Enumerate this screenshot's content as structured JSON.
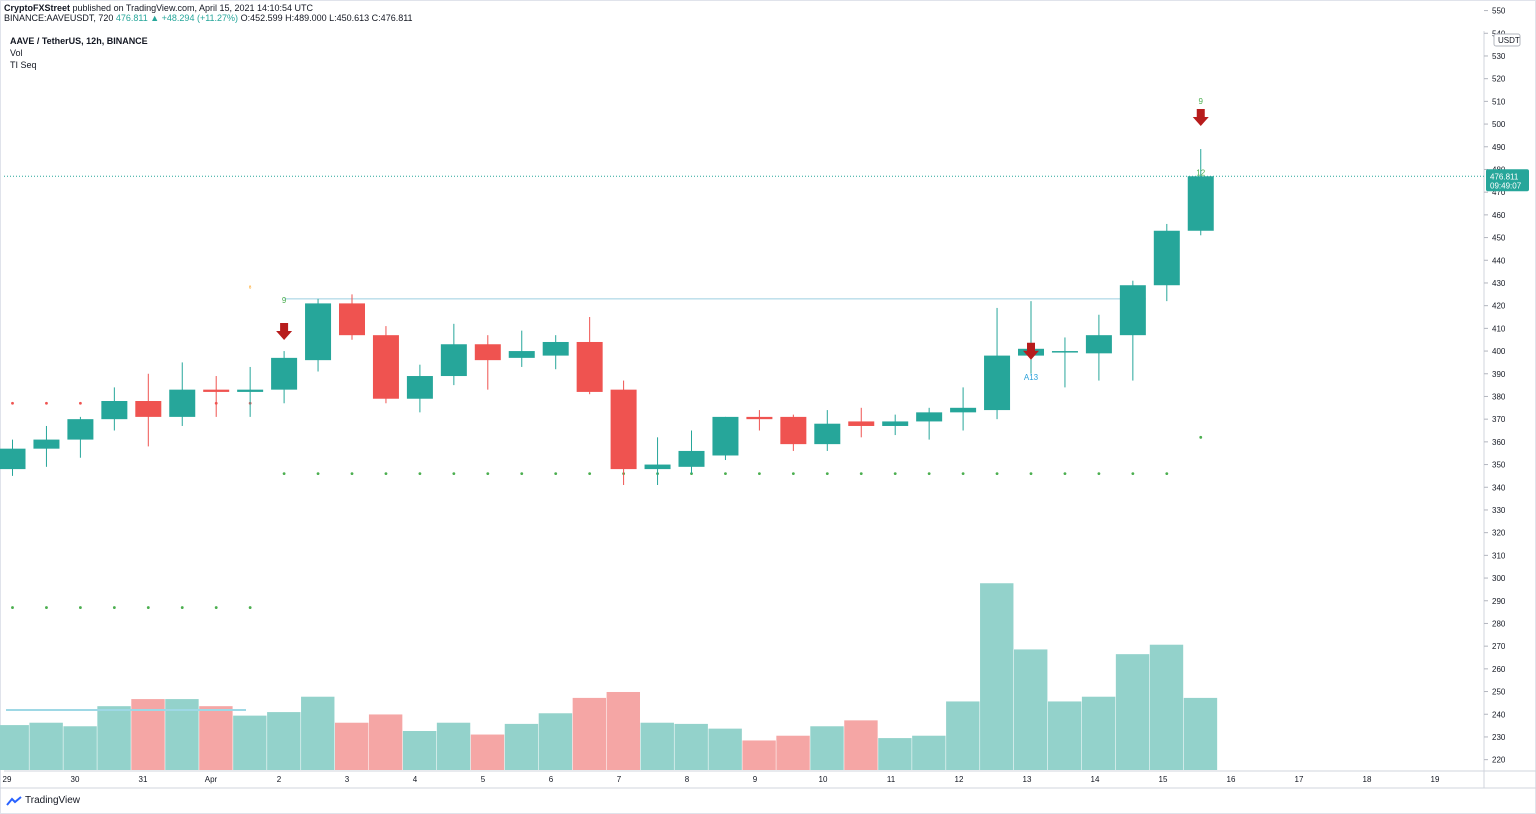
{
  "header": {
    "author": "CryptoFXStreet",
    "published_text": "published on TradingView.com, April 15, 2021 14:10:54 UTC",
    "symbol_text": "BINANCE:AAVEUSDT, 720",
    "change_text": "476.811 ▲ +48.294 (+11.27%)",
    "ohlc_text": "O:452.599 H:489.000 L:450.613 C:476.811"
  },
  "legend": {
    "pair": "AAVE / TetherUS, 12h, BINANCE",
    "volume": "Vol",
    "indicator": "TI Seq"
  },
  "footer": {
    "brand": "TradingView"
  },
  "colors": {
    "up": "#26a69a",
    "down": "#ef5350",
    "vol_up": "#93d2cb",
    "vol_down": "#f5a6a5",
    "seq_dot": "#4caf50",
    "arrow": "#b71c1c"
  },
  "chart_data": {
    "type": "candlestick",
    "price_axis": {
      "currency": "USDT",
      "ylim": [
        215,
        541
      ],
      "ticks": [
        220,
        230,
        240,
        250,
        260,
        270,
        280,
        290,
        300,
        310,
        320,
        330,
        340,
        350,
        360,
        370,
        380,
        390,
        400,
        410,
        420,
        430,
        440,
        450,
        460,
        470,
        480,
        490,
        500,
        510,
        520,
        530,
        540,
        550
      ],
      "last_price_label": "476.811",
      "countdown_label": "09:49:07"
    },
    "time_axis": {
      "labels": [
        "29",
        "30",
        "31",
        "Apr",
        "2",
        "3",
        "4",
        "5",
        "6",
        "7",
        "8",
        "9",
        "10",
        "11",
        "12",
        "13",
        "14",
        "15",
        "16",
        "17",
        "18",
        "19"
      ]
    },
    "candles": [
      {
        "o": 348,
        "h": 361,
        "l": 345,
        "c": 357
      },
      {
        "o": 357,
        "h": 367,
        "l": 349,
        "c": 361
      },
      {
        "o": 361,
        "h": 371,
        "l": 353,
        "c": 370
      },
      {
        "o": 370,
        "h": 384,
        "l": 365,
        "c": 378
      },
      {
        "o": 378,
        "h": 390,
        "l": 358,
        "c": 371
      },
      {
        "o": 371,
        "h": 395,
        "l": 367,
        "c": 383
      },
      {
        "o": 383,
        "h": 389,
        "l": 371,
        "c": 382
      },
      {
        "o": 382,
        "h": 393,
        "l": 371,
        "c": 383
      },
      {
        "o": 383,
        "h": 400,
        "l": 377,
        "c": 397
      },
      {
        "o": 396,
        "h": 423,
        "l": 391,
        "c": 421
      },
      {
        "o": 421,
        "h": 425,
        "l": 405,
        "c": 407
      },
      {
        "o": 407,
        "h": 411,
        "l": 377,
        "c": 379
      },
      {
        "o": 379,
        "h": 394,
        "l": 373,
        "c": 389
      },
      {
        "o": 389,
        "h": 412,
        "l": 385,
        "c": 403
      },
      {
        "o": 403,
        "h": 407,
        "l": 383,
        "c": 396
      },
      {
        "o": 397,
        "h": 409,
        "l": 393,
        "c": 400
      },
      {
        "o": 398,
        "h": 407,
        "l": 392,
        "c": 404
      },
      {
        "o": 404,
        "h": 415,
        "l": 381,
        "c": 382
      },
      {
        "o": 383,
        "h": 387,
        "l": 341,
        "c": 348
      },
      {
        "o": 348,
        "h": 362,
        "l": 341,
        "c": 350
      },
      {
        "o": 349,
        "h": 365,
        "l": 346,
        "c": 356
      },
      {
        "o": 354,
        "h": 371,
        "l": 352,
        "c": 371
      },
      {
        "o": 371,
        "h": 374,
        "l": 365,
        "c": 370
      },
      {
        "o": 371,
        "h": 372,
        "l": 356,
        "c": 359
      },
      {
        "o": 359,
        "h": 374,
        "l": 356,
        "c": 368
      },
      {
        "o": 369,
        "h": 375,
        "l": 362,
        "c": 367
      },
      {
        "o": 367,
        "h": 372,
        "l": 363,
        "c": 369
      },
      {
        "o": 369,
        "h": 375,
        "l": 361,
        "c": 373
      },
      {
        "o": 373,
        "h": 384,
        "l": 365,
        "c": 375
      },
      {
        "o": 374,
        "h": 419,
        "l": 370,
        "c": 398
      },
      {
        "o": 398,
        "h": 422,
        "l": 390,
        "c": 401
      },
      {
        "o": 400,
        "h": 406,
        "l": 384,
        "c": 400
      },
      {
        "o": 399,
        "h": 416,
        "l": 387,
        "c": 407
      },
      {
        "o": 407,
        "h": 431,
        "l": 387,
        "c": 429
      },
      {
        "o": 429,
        "h": 456,
        "l": 422,
        "c": 453
      },
      {
        "o": 453,
        "h": 489,
        "l": 451,
        "c": 477
      }
    ],
    "volume": [
      38,
      40,
      37,
      54,
      60,
      60,
      54,
      46,
      49,
      62,
      40,
      47,
      33,
      40,
      30,
      39,
      48,
      61,
      66,
      40,
      39,
      35,
      25,
      29,
      37,
      42,
      27,
      29,
      58,
      158,
      102,
      58,
      62,
      98,
      106,
      61
    ],
    "resistance_line": 423,
    "seq_labels": [
      {
        "bar": 8,
        "text": "9",
        "color": "#4caf50",
        "where": "above"
      },
      {
        "bar": 35,
        "text": "9",
        "color": "#4caf50",
        "where": "above"
      },
      {
        "bar": 35,
        "text": "12",
        "color": "#4caf50",
        "where": "below"
      },
      {
        "bar": 30,
        "text": "A13",
        "color": "#29a0d9",
        "where": "below"
      }
    ],
    "sell_arrows": [
      8,
      30,
      35
    ]
  }
}
